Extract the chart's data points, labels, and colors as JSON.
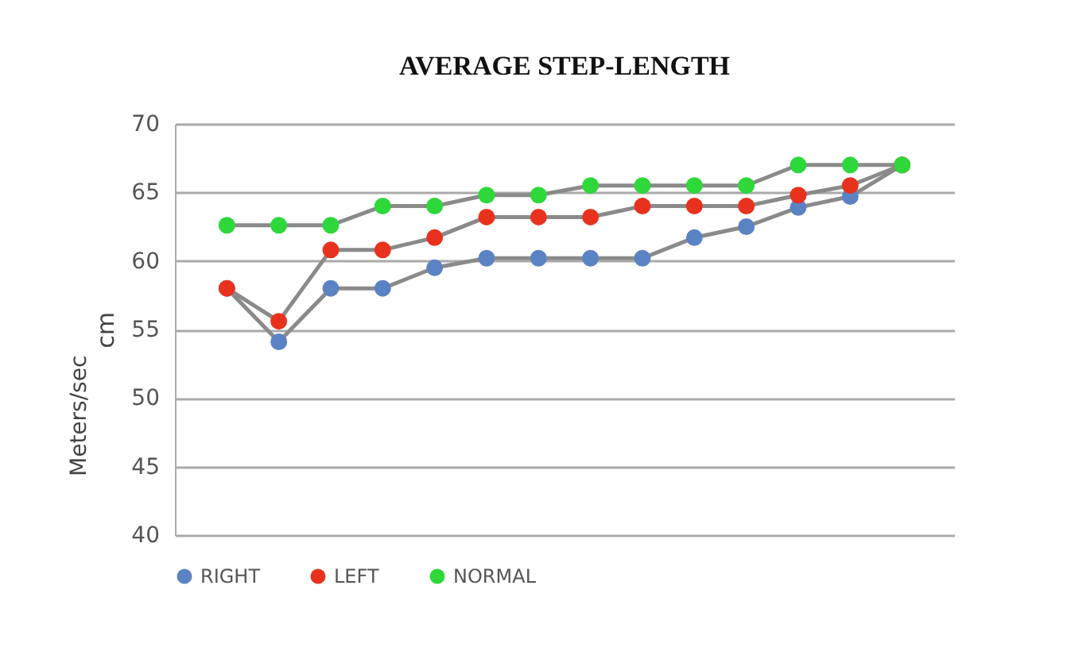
{
  "chart_data": {
    "type": "line",
    "title": "AVERAGE STEP-LENGTH",
    "ylabel": "cm",
    "annotations": [
      "Meters/sec"
    ],
    "categories": [
      null,
      null,
      null,
      null,
      null,
      null,
      null,
      null,
      null,
      null,
      null,
      null,
      null,
      null
    ],
    "series": [
      {
        "name": "RIGHT",
        "color": "#5b83c4",
        "values": [
          58.0,
          54.1,
          58.0,
          58.0,
          59.5,
          60.2,
          60.2,
          60.2,
          60.2,
          61.7,
          62.5,
          63.9,
          64.7,
          67.0
        ]
      },
      {
        "name": "LEFT",
        "color": "#e8321e",
        "values": [
          58.0,
          55.6,
          60.8,
          60.8,
          61.7,
          63.2,
          63.2,
          63.2,
          64.0,
          64.0,
          64.0,
          64.8,
          65.5,
          67.0
        ]
      },
      {
        "name": "NORMAL",
        "color": "#2ed83a",
        "values": [
          62.6,
          62.6,
          62.6,
          64.0,
          64.0,
          64.8,
          64.8,
          65.5,
          65.5,
          65.5,
          65.5,
          67.0,
          67.0,
          67.0
        ]
      }
    ],
    "ylim": [
      40,
      70
    ],
    "yticks": [
      40,
      45,
      50,
      55,
      60,
      65,
      70
    ],
    "grid": "y",
    "legend": "bottom",
    "marker": "circle",
    "line_style": "solid"
  }
}
